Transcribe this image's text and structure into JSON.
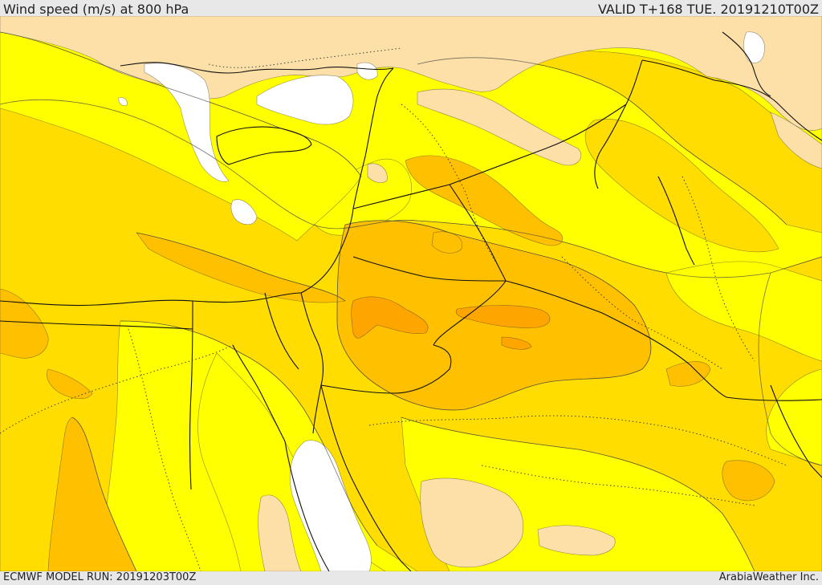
{
  "header": {
    "title": "Wind speed (m/s) at 800 hPa",
    "valid": "VALID T+168 TUE. 20191210T00Z"
  },
  "footer": {
    "model_run": "ECMWF MODEL RUN: 20191203T00Z",
    "credit": "ArabiaWeather Inc."
  },
  "palette": {
    "calm": "#ffffff",
    "light": "#fde0a8",
    "moderate": "#ffff00",
    "fresh": "#ffdd00",
    "strong": "#ffc000",
    "very_strong": "#ffa500",
    "outline": "#333333"
  }
}
